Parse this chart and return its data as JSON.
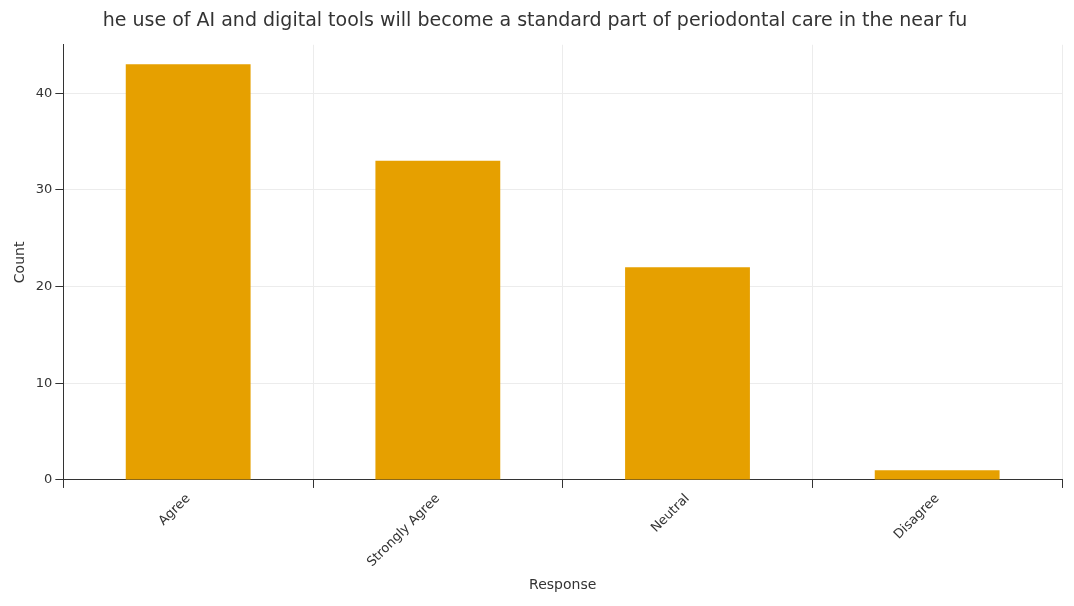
{
  "chart_data": {
    "type": "bar",
    "title": "he use of AI and digital tools will become a standard part of periodontal care in the near fu",
    "xlabel": "Response",
    "ylabel": "Count",
    "categories": [
      "Agree",
      "Strongly Agree",
      "Neutral",
      "Disagree"
    ],
    "values": [
      43,
      33,
      22,
      1
    ],
    "color": "#e6a000",
    "ylim": [
      0,
      45
    ],
    "yticks": [
      0,
      10,
      20,
      30,
      40
    ],
    "grid": true,
    "legend": false
  }
}
